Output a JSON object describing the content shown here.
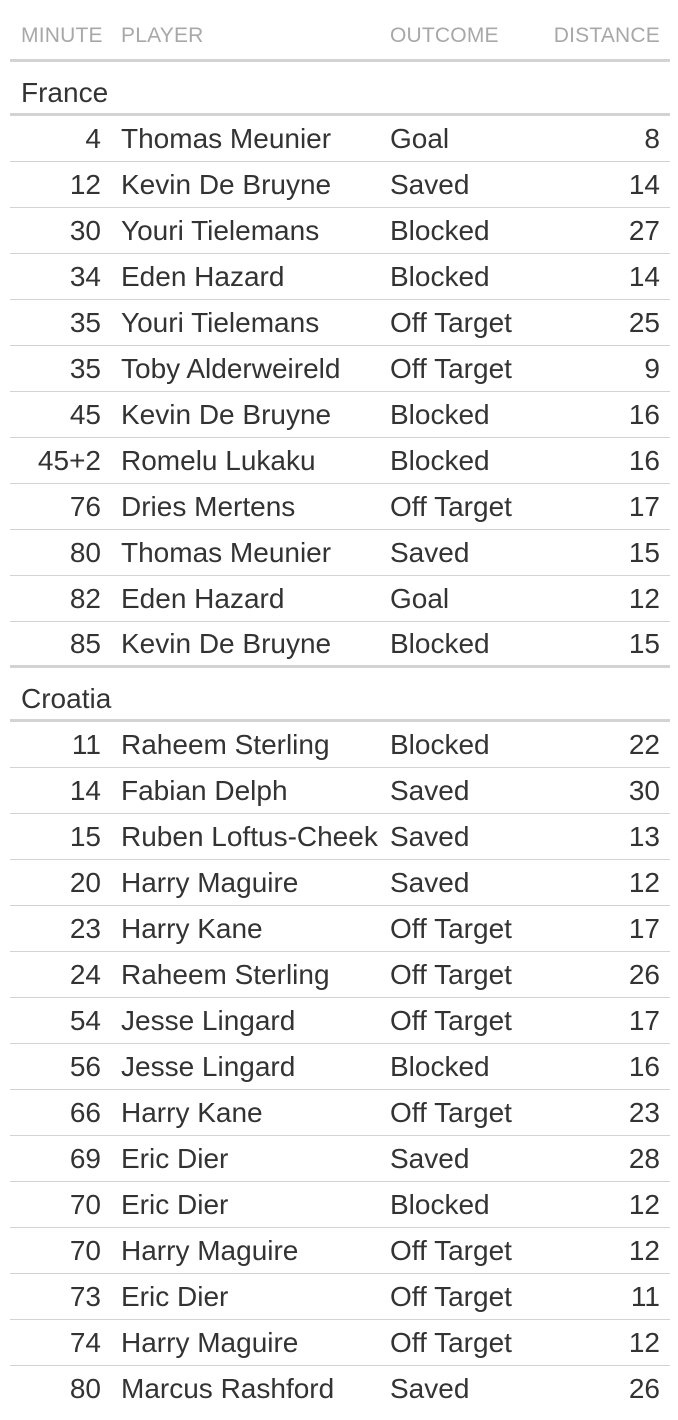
{
  "columns": {
    "minute": "MINUTE",
    "player": "PLAYER",
    "outcome": "OUTCOME",
    "distance": "DISTANCE"
  },
  "groups": [
    {
      "name": "France",
      "rows": [
        {
          "minute": "4",
          "player": "Thomas Meunier",
          "outcome": "Goal",
          "distance": "8"
        },
        {
          "minute": "12",
          "player": "Kevin De Bruyne",
          "outcome": "Saved",
          "distance": "14"
        },
        {
          "minute": "30",
          "player": "Youri Tielemans",
          "outcome": "Blocked",
          "distance": "27"
        },
        {
          "minute": "34",
          "player": "Eden Hazard",
          "outcome": "Blocked",
          "distance": "14"
        },
        {
          "minute": "35",
          "player": "Youri Tielemans",
          "outcome": "Off Target",
          "distance": "25"
        },
        {
          "minute": "35",
          "player": "Toby Alderweireld",
          "outcome": "Off Target",
          "distance": "9"
        },
        {
          "minute": "45",
          "player": "Kevin De Bruyne",
          "outcome": "Blocked",
          "distance": "16"
        },
        {
          "minute": "45+2",
          "player": "Romelu Lukaku",
          "outcome": "Blocked",
          "distance": "16"
        },
        {
          "minute": "76",
          "player": "Dries Mertens",
          "outcome": "Off Target",
          "distance": "17"
        },
        {
          "minute": "80",
          "player": "Thomas Meunier",
          "outcome": "Saved",
          "distance": "15"
        },
        {
          "minute": "82",
          "player": "Eden Hazard",
          "outcome": "Goal",
          "distance": "12"
        },
        {
          "minute": "85",
          "player": "Kevin De Bruyne",
          "outcome": "Blocked",
          "distance": "15"
        }
      ]
    },
    {
      "name": "Croatia",
      "rows": [
        {
          "minute": "11",
          "player": "Raheem Sterling",
          "outcome": "Blocked",
          "distance": "22"
        },
        {
          "minute": "14",
          "player": "Fabian Delph",
          "outcome": "Saved",
          "distance": "30"
        },
        {
          "minute": "15",
          "player": "Ruben Loftus-Cheek",
          "outcome": "Saved",
          "distance": "13"
        },
        {
          "minute": "20",
          "player": "Harry Maguire",
          "outcome": "Saved",
          "distance": "12"
        },
        {
          "minute": "23",
          "player": "Harry Kane",
          "outcome": "Off Target",
          "distance": "17"
        },
        {
          "minute": "24",
          "player": "Raheem Sterling",
          "outcome": "Off Target",
          "distance": "26"
        },
        {
          "minute": "54",
          "player": "Jesse Lingard",
          "outcome": "Off Target",
          "distance": "17"
        },
        {
          "minute": "56",
          "player": "Jesse Lingard",
          "outcome": "Blocked",
          "distance": "16"
        },
        {
          "minute": "66",
          "player": "Harry Kane",
          "outcome": "Off Target",
          "distance": "23"
        },
        {
          "minute": "69",
          "player": "Eric Dier",
          "outcome": "Saved",
          "distance": "28"
        },
        {
          "minute": "70",
          "player": "Eric Dier",
          "outcome": "Blocked",
          "distance": "12"
        },
        {
          "minute": "70",
          "player": "Harry Maguire",
          "outcome": "Off Target",
          "distance": "12"
        },
        {
          "minute": "73",
          "player": "Eric Dier",
          "outcome": "Off Target",
          "distance": "11"
        },
        {
          "minute": "74",
          "player": "Harry Maguire",
          "outcome": "Off Target",
          "distance": "12"
        },
        {
          "minute": "80",
          "player": "Marcus Rashford",
          "outcome": "Saved",
          "distance": "26"
        }
      ]
    }
  ]
}
